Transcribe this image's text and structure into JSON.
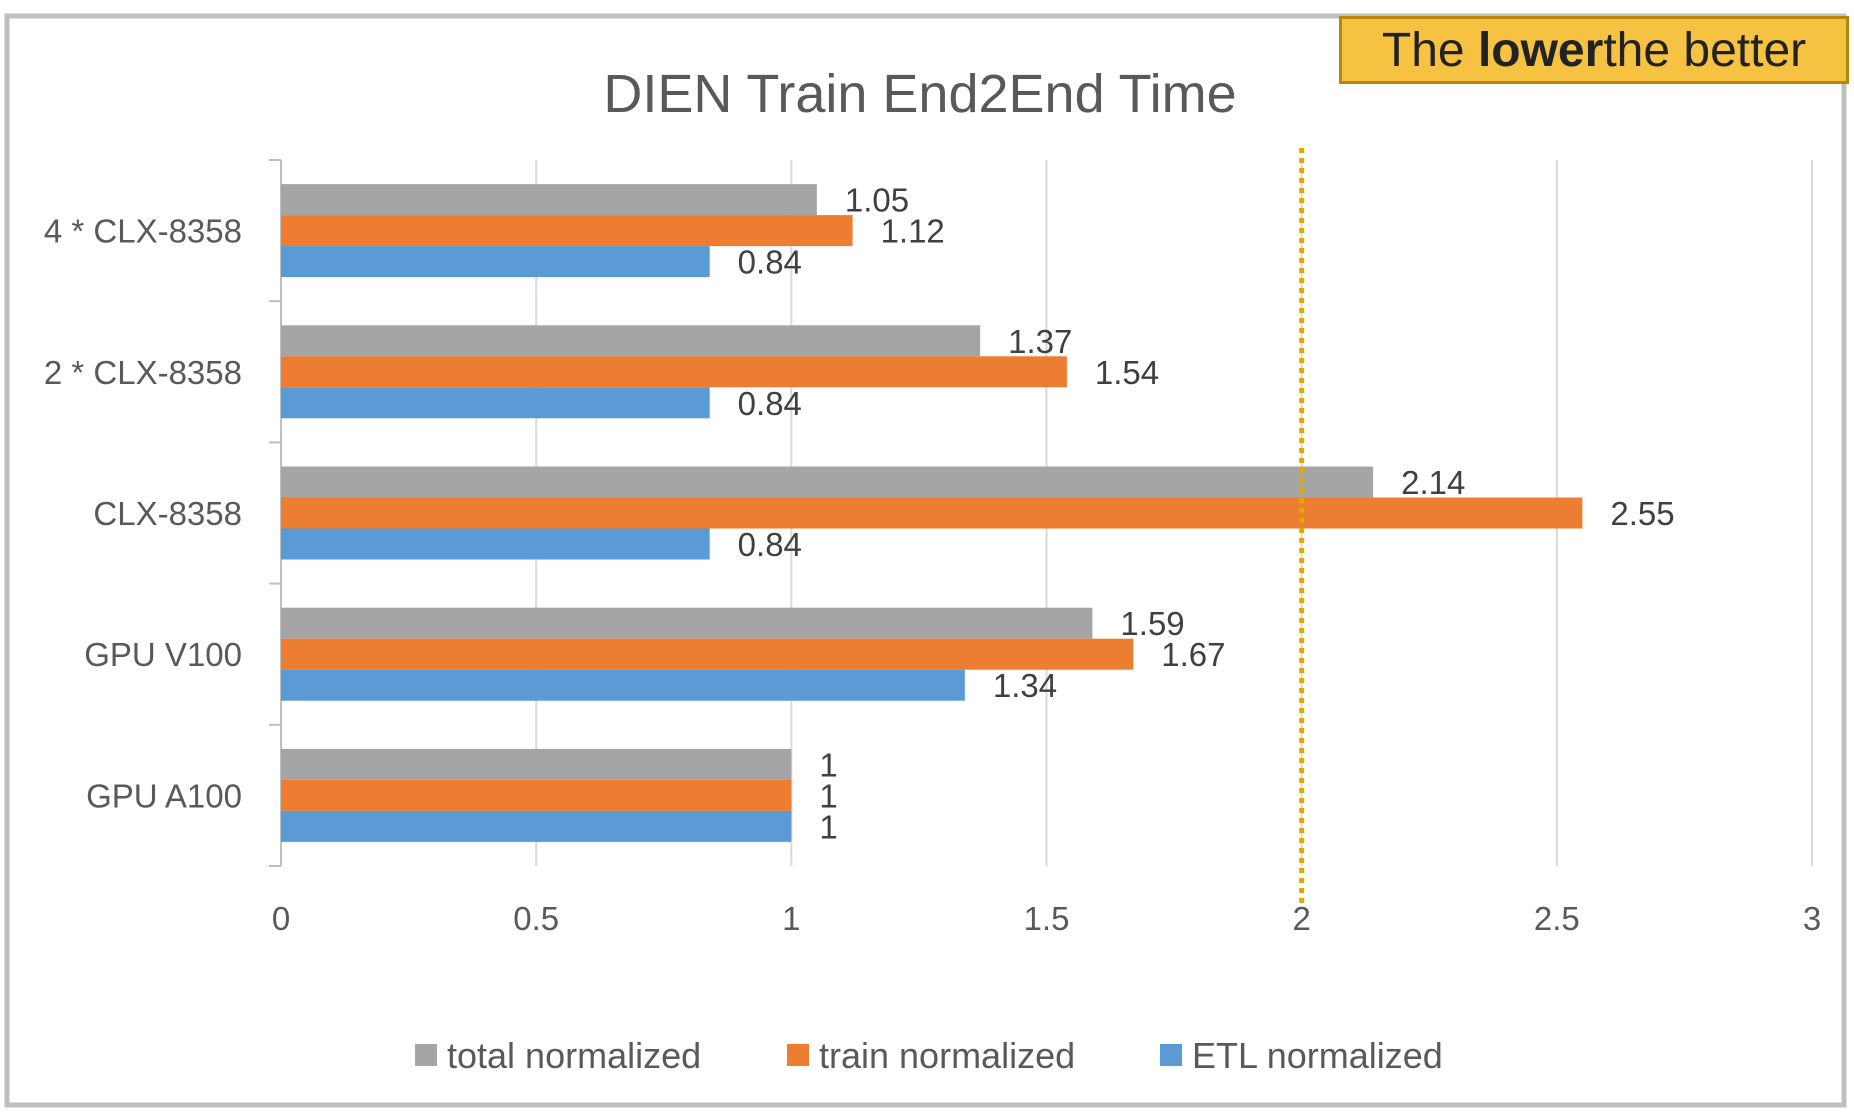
{
  "note": {
    "pre": "The ",
    "bold": "lower",
    "post": " the better"
  },
  "chart_data": {
    "type": "bar",
    "orientation": "horizontal",
    "title": "DIEN Train End2End Time",
    "categories": [
      "4 * CLX-8358",
      "2 * CLX-8358",
      "CLX-8358",
      "GPU V100",
      "GPU A100"
    ],
    "series": [
      {
        "name": "total normalized",
        "color": "#a5a5a5",
        "values": [
          1.05,
          1.37,
          2.14,
          1.59,
          1
        ]
      },
      {
        "name": "train normalized",
        "color": "#ed7d31",
        "values": [
          1.12,
          1.54,
          2.55,
          1.67,
          1
        ]
      },
      {
        "name": "ETL normalized",
        "color": "#5b9bd5",
        "values": [
          0.84,
          0.84,
          0.84,
          1.34,
          1
        ]
      }
    ],
    "xlim": [
      0,
      3
    ],
    "xticks": [
      "0",
      "0.5",
      "1",
      "1.5",
      "2",
      "2.5",
      "3"
    ],
    "reference_line": {
      "value": 2,
      "color": "#e0a800",
      "style": "dotted"
    },
    "grid": true,
    "legend_position": "bottom"
  }
}
